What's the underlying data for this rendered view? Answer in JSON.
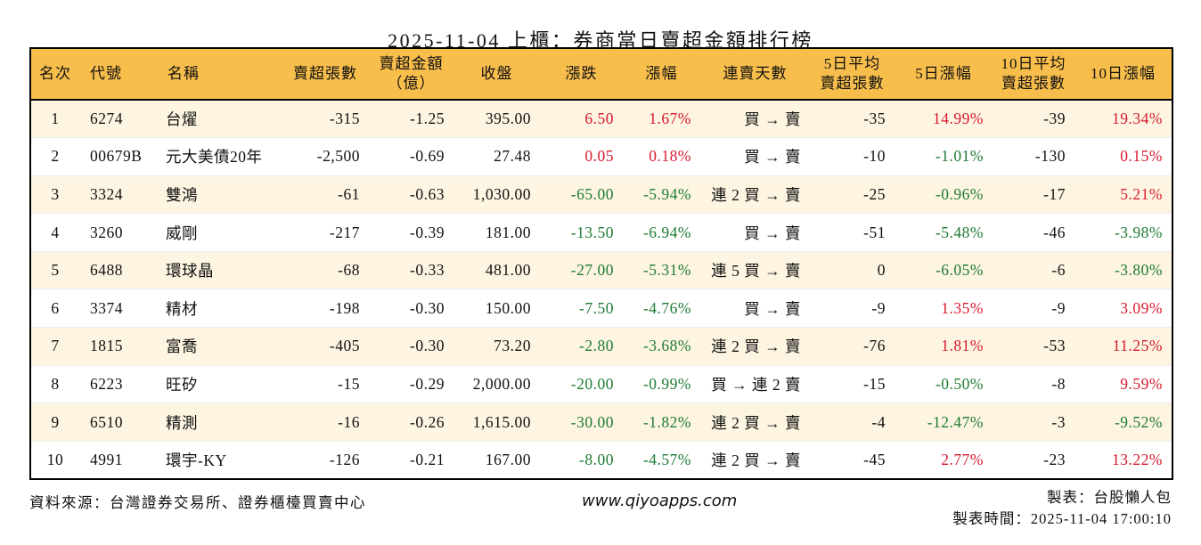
{
  "page": {
    "title": "2025-11-04 上櫃：券商當日賣超金額排行榜"
  },
  "colors": {
    "header_bg": "#f8be4c",
    "stripe_bg": "#fdf5e1",
    "up_red": "#d7182d",
    "down_green": "#1e7b33",
    "border": "#000000"
  },
  "table": {
    "columns": [
      {
        "key": "rank",
        "label": "名次",
        "align": "center"
      },
      {
        "key": "code",
        "label": "代號",
        "align": "left"
      },
      {
        "key": "name",
        "label": "名稱",
        "align": "left"
      },
      {
        "key": "net-sell-volume",
        "label": "賣超張數",
        "align": "right",
        "header_align": "center"
      },
      {
        "key": "net-sell-amount",
        "label": "賣超金額",
        "label2": "（億）",
        "align": "right",
        "header_align": "center"
      },
      {
        "key": "close",
        "label": "收盤",
        "align": "right",
        "header_align": "center"
      },
      {
        "key": "change",
        "label": "漲跌",
        "align": "right",
        "header_align": "center"
      },
      {
        "key": "change-pct",
        "label": "漲幅",
        "align": "right",
        "header_align": "center"
      },
      {
        "key": "streak",
        "label": "連賣天數",
        "align": "right",
        "header_align": "center"
      },
      {
        "key": "avg5-volume",
        "label": "5日平均",
        "label2": "賣超張數",
        "align": "right",
        "header_align": "center"
      },
      {
        "key": "pct5",
        "label": "5日漲幅",
        "align": "right",
        "header_align": "center"
      },
      {
        "key": "avg10-volume",
        "label": "10日平均",
        "label2": "賣超張數",
        "align": "right",
        "header_align": "center"
      },
      {
        "key": "pct10",
        "label": "10日漲幅",
        "align": "right",
        "header_align": "center"
      }
    ],
    "rows": [
      {
        "cells": [
          {
            "t": "1"
          },
          {
            "t": "6274"
          },
          {
            "t": "台燿"
          },
          {
            "t": "-315"
          },
          {
            "t": "-1.25"
          },
          {
            "t": "395.00"
          },
          {
            "t": "6.50",
            "c": "red"
          },
          {
            "t": "1.67%",
            "c": "red"
          },
          {
            "t": "買 → 賣"
          },
          {
            "t": "-35"
          },
          {
            "t": "14.99%",
            "c": "red"
          },
          {
            "t": "-39"
          },
          {
            "t": "19.34%",
            "c": "red"
          }
        ]
      },
      {
        "cells": [
          {
            "t": "2"
          },
          {
            "t": "00679B"
          },
          {
            "t": "元大美債20年"
          },
          {
            "t": "-2,500"
          },
          {
            "t": "-0.69"
          },
          {
            "t": "27.48"
          },
          {
            "t": "0.05",
            "c": "red"
          },
          {
            "t": "0.18%",
            "c": "red"
          },
          {
            "t": "買 → 賣"
          },
          {
            "t": "-10"
          },
          {
            "t": "-1.01%",
            "c": "green"
          },
          {
            "t": "-130"
          },
          {
            "t": "0.15%",
            "c": "red"
          }
        ]
      },
      {
        "cells": [
          {
            "t": "3"
          },
          {
            "t": "3324"
          },
          {
            "t": "雙鴻"
          },
          {
            "t": "-61"
          },
          {
            "t": "-0.63"
          },
          {
            "t": "1,030.00"
          },
          {
            "t": "-65.00",
            "c": "green"
          },
          {
            "t": "-5.94%",
            "c": "green"
          },
          {
            "t": "連 2 買 → 賣"
          },
          {
            "t": "-25"
          },
          {
            "t": "-0.96%",
            "c": "green"
          },
          {
            "t": "-17"
          },
          {
            "t": "5.21%",
            "c": "red"
          }
        ]
      },
      {
        "cells": [
          {
            "t": "4"
          },
          {
            "t": "3260"
          },
          {
            "t": "威剛"
          },
          {
            "t": "-217"
          },
          {
            "t": "-0.39"
          },
          {
            "t": "181.00"
          },
          {
            "t": "-13.50",
            "c": "green"
          },
          {
            "t": "-6.94%",
            "c": "green"
          },
          {
            "t": "買 → 賣"
          },
          {
            "t": "-51"
          },
          {
            "t": "-5.48%",
            "c": "green"
          },
          {
            "t": "-46"
          },
          {
            "t": "-3.98%",
            "c": "green"
          }
        ]
      },
      {
        "cells": [
          {
            "t": "5"
          },
          {
            "t": "6488"
          },
          {
            "t": "環球晶"
          },
          {
            "t": "-68"
          },
          {
            "t": "-0.33"
          },
          {
            "t": "481.00"
          },
          {
            "t": "-27.00",
            "c": "green"
          },
          {
            "t": "-5.31%",
            "c": "green"
          },
          {
            "t": "連 5 買 → 賣"
          },
          {
            "t": "0"
          },
          {
            "t": "-6.05%",
            "c": "green"
          },
          {
            "t": "-6"
          },
          {
            "t": "-3.80%",
            "c": "green"
          }
        ]
      },
      {
        "cells": [
          {
            "t": "6"
          },
          {
            "t": "3374"
          },
          {
            "t": "精材"
          },
          {
            "t": "-198"
          },
          {
            "t": "-0.30"
          },
          {
            "t": "150.00"
          },
          {
            "t": "-7.50",
            "c": "green"
          },
          {
            "t": "-4.76%",
            "c": "green"
          },
          {
            "t": "買 → 賣"
          },
          {
            "t": "-9"
          },
          {
            "t": "1.35%",
            "c": "red"
          },
          {
            "t": "-9"
          },
          {
            "t": "3.09%",
            "c": "red"
          }
        ]
      },
      {
        "cells": [
          {
            "t": "7"
          },
          {
            "t": "1815"
          },
          {
            "t": "富喬"
          },
          {
            "t": "-405"
          },
          {
            "t": "-0.30"
          },
          {
            "t": "73.20"
          },
          {
            "t": "-2.80",
            "c": "green"
          },
          {
            "t": "-3.68%",
            "c": "green"
          },
          {
            "t": "連 2 買 → 賣"
          },
          {
            "t": "-76"
          },
          {
            "t": "1.81%",
            "c": "red"
          },
          {
            "t": "-53"
          },
          {
            "t": "11.25%",
            "c": "red"
          }
        ]
      },
      {
        "cells": [
          {
            "t": "8"
          },
          {
            "t": "6223"
          },
          {
            "t": "旺矽"
          },
          {
            "t": "-15"
          },
          {
            "t": "-0.29"
          },
          {
            "t": "2,000.00"
          },
          {
            "t": "-20.00",
            "c": "green"
          },
          {
            "t": "-0.99%",
            "c": "green"
          },
          {
            "t": "買 → 連 2 賣"
          },
          {
            "t": "-15"
          },
          {
            "t": "-0.50%",
            "c": "green"
          },
          {
            "t": "-8"
          },
          {
            "t": "9.59%",
            "c": "red"
          }
        ]
      },
      {
        "cells": [
          {
            "t": "9"
          },
          {
            "t": "6510"
          },
          {
            "t": "精測"
          },
          {
            "t": "-16"
          },
          {
            "t": "-0.26"
          },
          {
            "t": "1,615.00"
          },
          {
            "t": "-30.00",
            "c": "green"
          },
          {
            "t": "-1.82%",
            "c": "green"
          },
          {
            "t": "連 2 買 → 賣"
          },
          {
            "t": "-4"
          },
          {
            "t": "-12.47%",
            "c": "green"
          },
          {
            "t": "-3"
          },
          {
            "t": "-9.52%",
            "c": "green"
          }
        ]
      },
      {
        "cells": [
          {
            "t": "10"
          },
          {
            "t": "4991"
          },
          {
            "t": "環宇-KY"
          },
          {
            "t": "-126"
          },
          {
            "t": "-0.21"
          },
          {
            "t": "167.00"
          },
          {
            "t": "-8.00",
            "c": "green"
          },
          {
            "t": "-4.57%",
            "c": "green"
          },
          {
            "t": "連 2 買 → 賣"
          },
          {
            "t": "-45"
          },
          {
            "t": "2.77%",
            "c": "red"
          },
          {
            "t": "-23"
          },
          {
            "t": "13.22%",
            "c": "red"
          }
        ]
      }
    ]
  },
  "footer": {
    "source": "資料來源：台灣證券交易所、證券櫃檯買賣中心",
    "site": "www.qiyoapps.com",
    "maker": "製表：台股懶人包",
    "time": "製表時間：2025-11-04 17:00:10"
  }
}
